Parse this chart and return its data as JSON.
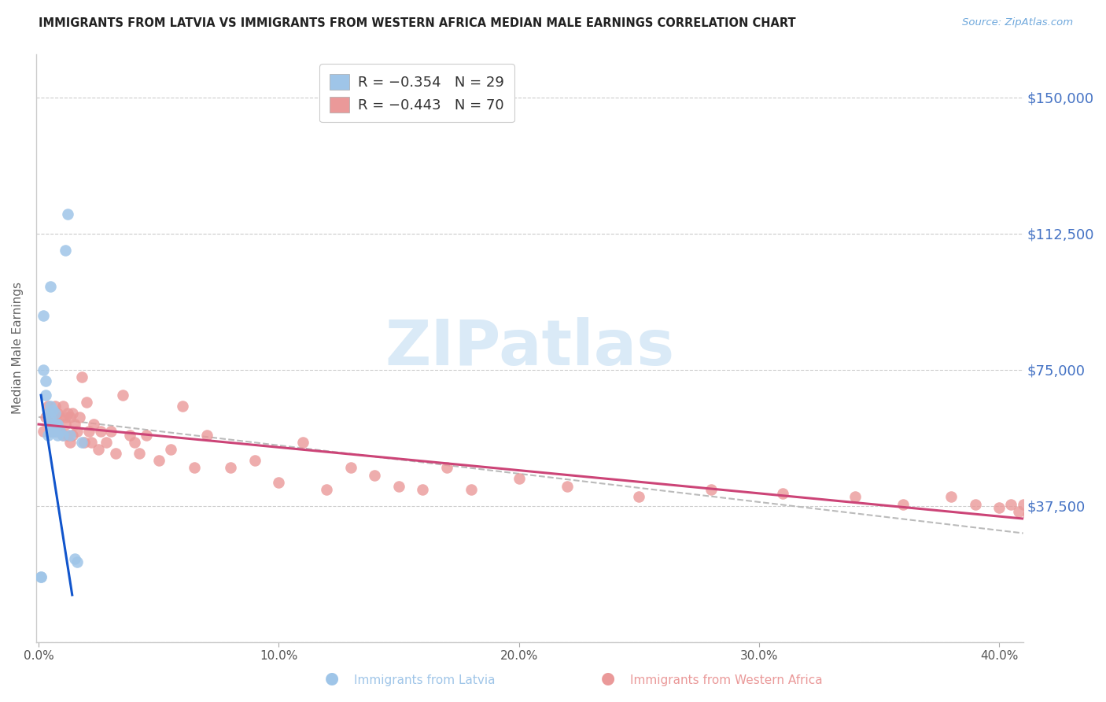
{
  "title": "IMMIGRANTS FROM LATVIA VS IMMIGRANTS FROM WESTERN AFRICA MEDIAN MALE EARNINGS CORRELATION CHART",
  "source": "Source: ZipAtlas.com",
  "ylabel": "Median Male Earnings",
  "yticks": [
    0,
    37500,
    75000,
    112500,
    150000
  ],
  "ytick_labels": [
    "",
    "$37,500",
    "$75,000",
    "$112,500",
    "$150,000"
  ],
  "ylim": [
    0,
    162000
  ],
  "xlim": [
    -0.001,
    0.41
  ],
  "xticks": [
    0.0,
    0.1,
    0.2,
    0.3,
    0.4
  ],
  "xtick_labels": [
    "0.0%",
    "10.0%",
    "20.0%",
    "30.0%",
    "40.0%"
  ],
  "legend_label1": "Immigrants from Latvia",
  "legend_label2": "Immigrants from Western Africa",
  "legend_r1": "R = −0.354",
  "legend_n1": "N = 29",
  "legend_r2": "R = −0.443",
  "legend_n2": "N = 70",
  "color_latvia": "#9fc5e8",
  "color_w_africa": "#ea9999",
  "color_line_latvia": "#1155cc",
  "color_line_w_africa": "#cc4477",
  "color_trend_dashed": "#bbbbbb",
  "color_ytick_label": "#4472c4",
  "color_xtick_label": "#555555",
  "watermark_text": "ZIPatlas",
  "watermark_color": "#daeaf7",
  "background_color": "#ffffff",
  "latvia_x": [
    0.001,
    0.001,
    0.002,
    0.002,
    0.003,
    0.003,
    0.004,
    0.004,
    0.005,
    0.005,
    0.005,
    0.005,
    0.005,
    0.006,
    0.006,
    0.006,
    0.007,
    0.007,
    0.007,
    0.008,
    0.008,
    0.009,
    0.01,
    0.011,
    0.012,
    0.013,
    0.015,
    0.016,
    0.018
  ],
  "latvia_y": [
    18000,
    18000,
    75000,
    90000,
    68000,
    72000,
    63000,
    57000,
    58000,
    60000,
    62000,
    65000,
    98000,
    58000,
    60000,
    64000,
    58000,
    60000,
    63000,
    57000,
    60000,
    58000,
    57000,
    108000,
    118000,
    57000,
    23000,
    22000,
    55000
  ],
  "w_africa_x": [
    0.002,
    0.003,
    0.004,
    0.005,
    0.006,
    0.007,
    0.007,
    0.008,
    0.008,
    0.009,
    0.009,
    0.01,
    0.01,
    0.011,
    0.011,
    0.012,
    0.012,
    0.013,
    0.013,
    0.014,
    0.014,
    0.015,
    0.016,
    0.017,
    0.018,
    0.019,
    0.02,
    0.021,
    0.022,
    0.023,
    0.025,
    0.026,
    0.028,
    0.03,
    0.032,
    0.035,
    0.038,
    0.04,
    0.042,
    0.045,
    0.05,
    0.055,
    0.06,
    0.065,
    0.07,
    0.08,
    0.09,
    0.1,
    0.11,
    0.12,
    0.13,
    0.14,
    0.15,
    0.16,
    0.17,
    0.18,
    0.2,
    0.22,
    0.25,
    0.28,
    0.31,
    0.34,
    0.36,
    0.38,
    0.39,
    0.4,
    0.405,
    0.408,
    0.41,
    0.412
  ],
  "w_africa_y": [
    58000,
    62000,
    65000,
    58000,
    62000,
    58000,
    65000,
    58000,
    63000,
    58000,
    62000,
    57000,
    65000,
    60000,
    62000,
    57000,
    63000,
    55000,
    62000,
    57000,
    63000,
    60000,
    58000,
    62000,
    73000,
    55000,
    66000,
    58000,
    55000,
    60000,
    53000,
    58000,
    55000,
    58000,
    52000,
    68000,
    57000,
    55000,
    52000,
    57000,
    50000,
    53000,
    65000,
    48000,
    57000,
    48000,
    50000,
    44000,
    55000,
    42000,
    48000,
    46000,
    43000,
    42000,
    48000,
    42000,
    45000,
    43000,
    40000,
    42000,
    41000,
    40000,
    38000,
    40000,
    38000,
    37000,
    38000,
    36000,
    38000,
    35000
  ],
  "latvia_line_x": [
    0.001,
    0.014
  ],
  "latvia_line_y": [
    68000,
    13000
  ],
  "w_africa_line_x": [
    0.0,
    0.41
  ],
  "w_africa_line_y": [
    60000,
    34000
  ],
  "dashed_line_x": [
    0.0,
    0.41
  ],
  "dashed_line_y": [
    62000,
    30000
  ]
}
